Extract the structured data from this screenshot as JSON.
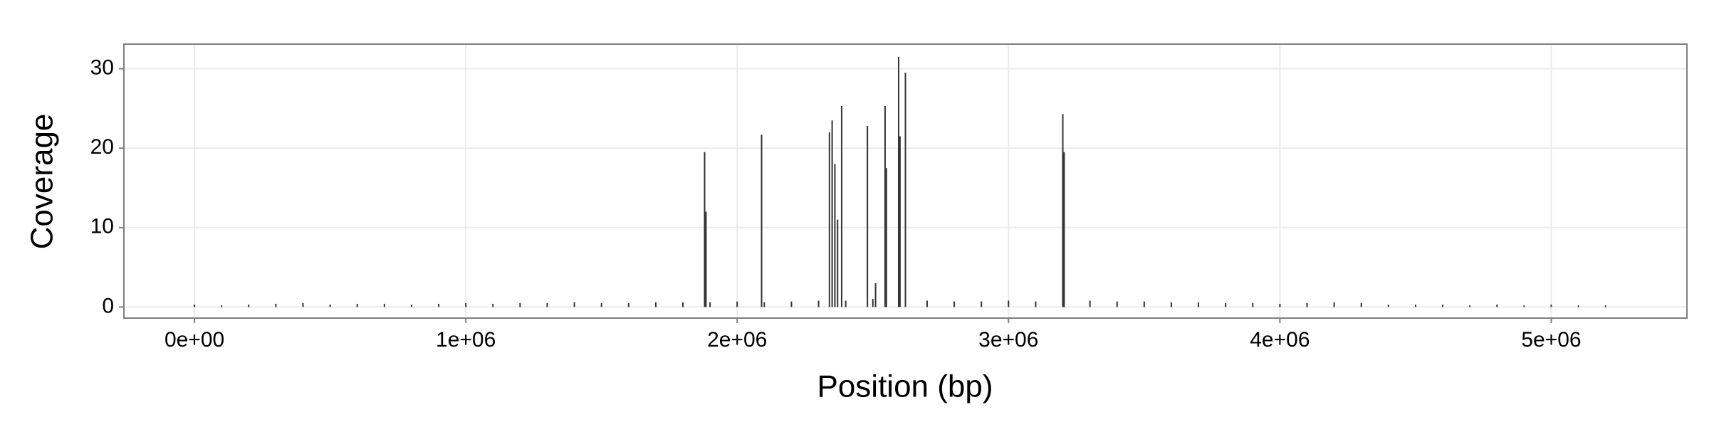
{
  "chart_data": {
    "type": "bar",
    "x_label": "Position (bp)",
    "y_label": "Coverage",
    "x": [
      0,
      100000,
      200000,
      300000,
      400000,
      500000,
      600000,
      700000,
      800000,
      900000,
      1000000,
      1100000,
      1200000,
      1300000,
      1400000,
      1500000,
      1600000,
      1700000,
      1800000,
      1880000,
      1885000,
      1900000,
      2000000,
      2090000,
      2100000,
      2200000,
      2300000,
      2340000,
      2350000,
      2360000,
      2370000,
      2385000,
      2400000,
      2480000,
      2500000,
      2510000,
      2545000,
      2550000,
      2595000,
      2600000,
      2620000,
      2700000,
      2800000,
      2900000,
      3000000,
      3100000,
      3200000,
      3205000,
      3300000,
      3400000,
      3500000,
      3600000,
      3700000,
      3800000,
      3900000,
      4000000,
      4100000,
      4200000,
      4300000,
      4400000,
      4500000,
      4600000,
      4700000,
      4800000,
      4900000,
      5000000,
      5100000,
      5200000
    ],
    "values": [
      0.3,
      0.2,
      0.3,
      0.4,
      0.5,
      0.3,
      0.4,
      0.4,
      0.3,
      0.4,
      0.5,
      0.4,
      0.5,
      0.5,
      0.6,
      0.5,
      0.5,
      0.6,
      0.6,
      19.5,
      12,
      0.6,
      0.7,
      21.7,
      0.6,
      0.7,
      0.8,
      22,
      23.5,
      18,
      11,
      25.3,
      0.8,
      22.8,
      1,
      3,
      25.3,
      17.5,
      31.5,
      21.5,
      29.5,
      0.8,
      0.7,
      0.7,
      0.8,
      0.7,
      24.3,
      19.5,
      0.8,
      0.7,
      0.7,
      0.6,
      0.6,
      0.5,
      0.5,
      0.4,
      0.5,
      0.6,
      0.5,
      0.3,
      0.3,
      0.3,
      0.2,
      0.3,
      0.2,
      0.3,
      0.2,
      0.2
    ],
    "color": "#333333",
    "xlim": [
      -260000,
      5500000
    ],
    "xticks": [
      {
        "value": 0,
        "label": "0e+00"
      },
      {
        "value": 1000000,
        "label": "1e+06"
      },
      {
        "value": 2000000,
        "label": "2e+06"
      },
      {
        "value": 3000000,
        "label": "3e+06"
      },
      {
        "value": 4000000,
        "label": "4e+06"
      },
      {
        "value": 5000000,
        "label": "5e+06"
      }
    ],
    "ylim": [
      -1.4,
      33.1
    ],
    "yticks": [
      0,
      10,
      20,
      30
    ],
    "grid": true
  }
}
